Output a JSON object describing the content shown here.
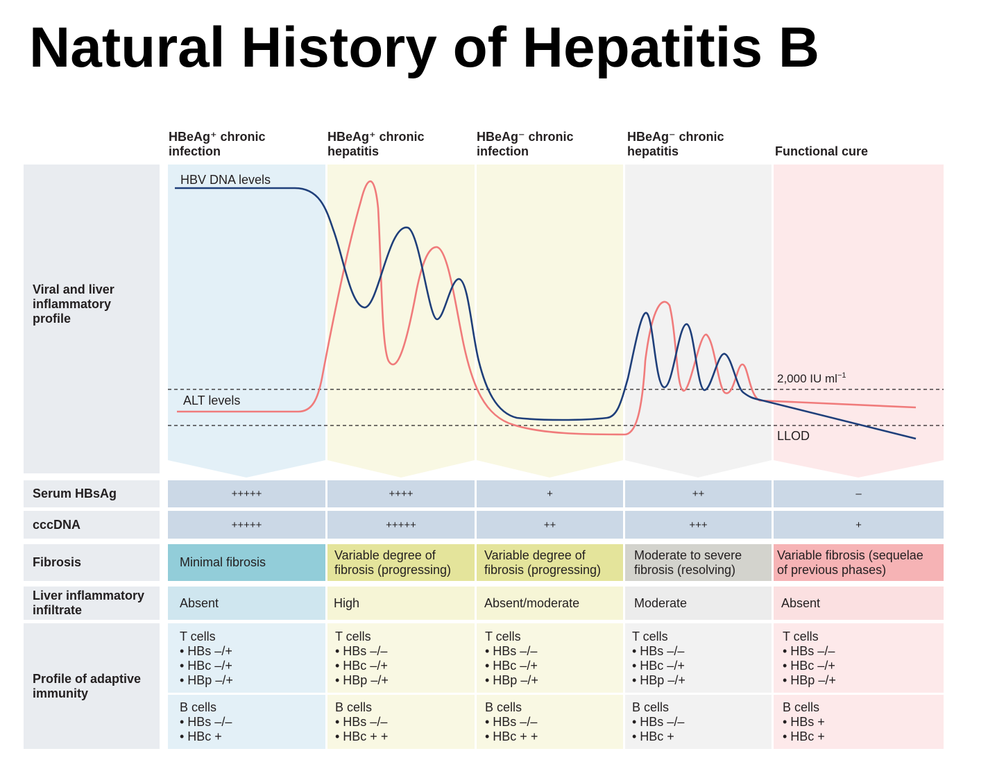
{
  "title": "Natural History of Hepatitis B",
  "phases": [
    {
      "line1": "HBeAg⁺ chronic",
      "line2": "infection"
    },
    {
      "line1": "HBeAg⁺ chronic",
      "line2": "hepatitis"
    },
    {
      "line1": "HBeAg⁻ chronic",
      "line2": "infection"
    },
    {
      "line1": "HBeAg⁻ chronic",
      "line2": "hepatitis"
    },
    {
      "line1": "",
      "line2": "Functional cure"
    }
  ],
  "colors": {
    "phase_bg": [
      "#e3f0f7",
      "#f9f8e3",
      "#f9f8e3",
      "#f2f2f2",
      "#fde9ea"
    ],
    "fibrosis_bg": [
      "#92cdd9",
      "#e4e49b",
      "#e4e49b",
      "#d3d3cd",
      "#f6b3b5"
    ],
    "light_bg": [
      "#cfe6ef",
      "#f6f5d6",
      "#f6f5d6",
      "#ececec",
      "#fbe0e1"
    ],
    "hbv_line": "#1f3f7a",
    "alt_line": "#f07b7b",
    "symbol_bg": "#cbd8e6",
    "label_bg": "#e9ecf0"
  },
  "chart": {
    "row_label": "Viral and liver inflammatory profile",
    "hbv_label": "HBV DNA levels",
    "alt_label": "ALT levels",
    "threshold_label": "2,000 IU ml",
    "threshold_sup": "−1",
    "llod_label": "LLOD"
  },
  "rows": {
    "serum": {
      "label": "Serum HBsAg",
      "values": [
        "+++++",
        "++++",
        "+",
        "++",
        "–"
      ]
    },
    "cccdna": {
      "label": "cccDNA",
      "values": [
        "+++++",
        "+++++",
        "++",
        "+++",
        "+"
      ]
    },
    "fibrosis": {
      "label": "Fibrosis",
      "values": [
        {
          "l1": "Minimal fibrosis",
          "l2": ""
        },
        {
          "l1": "Variable degree of",
          "l2": "fibrosis (progressing)"
        },
        {
          "l1": "Variable degree of",
          "l2": "fibrosis (progressing)"
        },
        {
          "l1": "Moderate to severe",
          "l2": "fibrosis (resolving)"
        },
        {
          "l1": "Variable fibrosis (sequelae",
          "l2": "of previous phases)"
        }
      ]
    },
    "infiltrate": {
      "label1": "Liver inflammatory",
      "label2": "infiltrate",
      "values": [
        "Absent",
        "High",
        "Absent/moderate",
        "Moderate",
        "Absent"
      ]
    },
    "immunity": {
      "label1": "Profile of adaptive",
      "label2": "immunity",
      "tcells": [
        {
          "head": "T cells",
          "items": [
            "• HBs –/+",
            "• HBc –/+",
            "• HBp –/+"
          ]
        },
        {
          "head": "T cells",
          "items": [
            "• HBs –/–",
            "• HBc –/+",
            "• HBp –/+"
          ]
        },
        {
          "head": "T cells",
          "items": [
            "• HBs –/–",
            "• HBc –/+",
            "• HBp –/+"
          ]
        },
        {
          "head": "T cells",
          "items": [
            "• HBs –/–",
            "• HBc –/+",
            "• HBp –/+"
          ]
        },
        {
          "head": "T cells",
          "items": [
            "• HBs –/–",
            "• HBc –/+",
            "• HBp –/+"
          ]
        }
      ],
      "bcells": [
        {
          "head": "B cells",
          "items": [
            "• HBs –/–",
            "• HBc +"
          ]
        },
        {
          "head": "B cells",
          "items": [
            "• HBs –/–",
            "• HBc + +"
          ]
        },
        {
          "head": "B cells",
          "items": [
            "• HBs –/–",
            "• HBc + +"
          ]
        },
        {
          "head": "B cells",
          "items": [
            "• HBs –/–",
            "• HBc +"
          ]
        },
        {
          "head": "B cells",
          "items": [
            "• HBs +",
            "• HBc +"
          ]
        }
      ]
    }
  }
}
